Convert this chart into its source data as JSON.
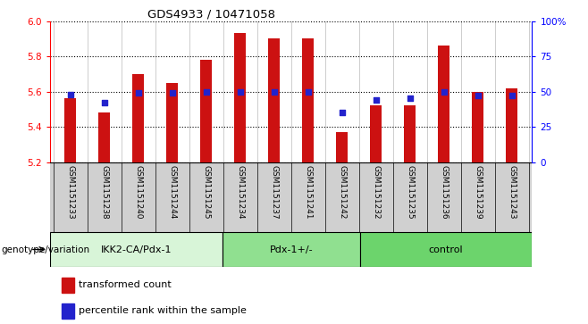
{
  "title": "GDS4933 / 10471058",
  "samples": [
    "GSM1151233",
    "GSM1151238",
    "GSM1151240",
    "GSM1151244",
    "GSM1151245",
    "GSM1151234",
    "GSM1151237",
    "GSM1151241",
    "GSM1151242",
    "GSM1151232",
    "GSM1151235",
    "GSM1151236",
    "GSM1151239",
    "GSM1151243"
  ],
  "bar_values": [
    5.56,
    5.48,
    5.7,
    5.65,
    5.78,
    5.93,
    5.9,
    5.9,
    5.37,
    5.52,
    5.52,
    5.86,
    5.6,
    5.62
  ],
  "blue_values": [
    48,
    42,
    49,
    49,
    50,
    50,
    50,
    50,
    35,
    44,
    45,
    50,
    47,
    47
  ],
  "groups": [
    {
      "label": "IKK2-CA/Pdx-1",
      "count": 5
    },
    {
      "label": "Pdx-1+/-",
      "count": 4
    },
    {
      "label": "control",
      "count": 5
    }
  ],
  "group_colors": [
    "#d8f5d8",
    "#90e090",
    "#6cd46c"
  ],
  "bar_color": "#cc1111",
  "dot_color": "#2222cc",
  "ymin": 5.2,
  "ymax": 6.0,
  "y2min": 0,
  "y2max": 100,
  "yticks": [
    5.2,
    5.4,
    5.6,
    5.8,
    6.0
  ],
  "y2ticks": [
    0,
    25,
    50,
    75,
    100
  ],
  "y2ticklabels": [
    "0",
    "25",
    "50",
    "75",
    "100%"
  ],
  "legend_items": [
    {
      "label": "transformed count",
      "color": "#cc1111"
    },
    {
      "label": "percentile rank within the sample",
      "color": "#2222cc"
    }
  ],
  "bar_width": 0.35,
  "sample_bg": "#d0d0d0",
  "genotype_label": "genotype/variation"
}
